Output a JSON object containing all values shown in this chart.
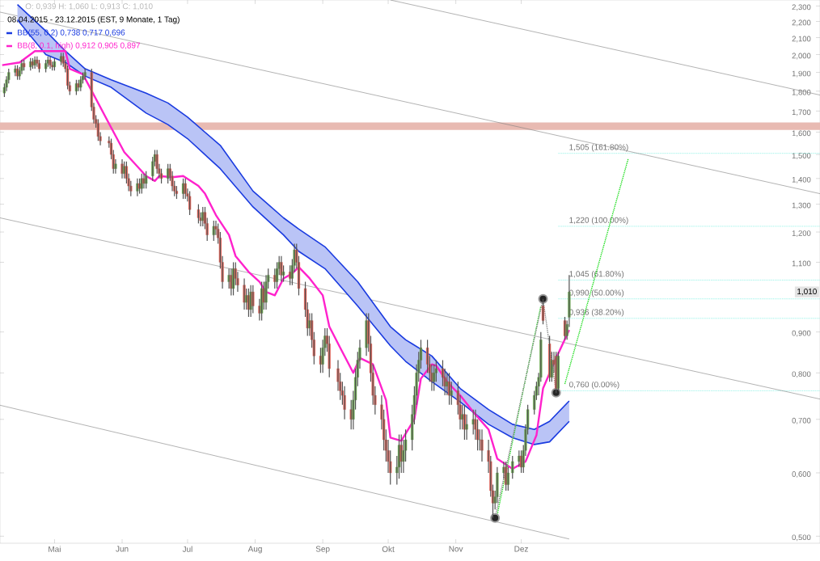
{
  "chart_data": {
    "type": "candlestick",
    "title": "O: 0,939  H: 1,060  L: 0,913  C: 1,010",
    "subtitle": "08.04.2015 - 23.12.2015 (EST, 9 Monate, 1 Tag)",
    "x": [
      "2015-04-08",
      "2015-04-09",
      "2015-04-10",
      "2015-04-13",
      "2015-04-14",
      "2015-04-15",
      "2015-04-16",
      "2015-04-17",
      "2015-04-20",
      "2015-04-21",
      "2015-04-22",
      "2015-04-23",
      "2015-04-24",
      "2015-04-27",
      "2015-04-28",
      "2015-04-29",
      "2015-04-30",
      "2015-05-01",
      "2015-05-04",
      "2015-05-05",
      "2015-05-06",
      "2015-05-07",
      "2015-05-08",
      "2015-05-11",
      "2015-05-12",
      "2015-05-13",
      "2015-05-14",
      "2015-05-15",
      "2015-05-18",
      "2015-05-19",
      "2015-05-20",
      "2015-05-21",
      "2015-05-22",
      "2015-05-26",
      "2015-05-27",
      "2015-05-28",
      "2015-05-29",
      "2015-06-01",
      "2015-06-02",
      "2015-06-03",
      "2015-06-04",
      "2015-06-05",
      "2015-06-08",
      "2015-06-09",
      "2015-06-10",
      "2015-06-11",
      "2015-06-12",
      "2015-06-15",
      "2015-06-16",
      "2015-06-17",
      "2015-06-18",
      "2015-06-19",
      "2015-06-22",
      "2015-06-23",
      "2015-06-24",
      "2015-06-25",
      "2015-06-26",
      "2015-06-29",
      "2015-06-30",
      "2015-07-01",
      "2015-07-02",
      "2015-07-06",
      "2015-07-07",
      "2015-07-08",
      "2015-07-09",
      "2015-07-10",
      "2015-07-13",
      "2015-07-14",
      "2015-07-15",
      "2015-07-16",
      "2015-07-17",
      "2015-07-20",
      "2015-07-21",
      "2015-07-22",
      "2015-07-23",
      "2015-07-24",
      "2015-07-27",
      "2015-07-28",
      "2015-07-29",
      "2015-07-30",
      "2015-07-31",
      "2015-08-03",
      "2015-08-04",
      "2015-08-05",
      "2015-08-06",
      "2015-08-07",
      "2015-08-10",
      "2015-08-11",
      "2015-08-12",
      "2015-08-13",
      "2015-08-14",
      "2015-08-17",
      "2015-08-18",
      "2015-08-19",
      "2015-08-20",
      "2015-08-21",
      "2015-08-24",
      "2015-08-25",
      "2015-08-26",
      "2015-08-27",
      "2015-08-28",
      "2015-08-31",
      "2015-09-01",
      "2015-09-02",
      "2015-09-03",
      "2015-09-04",
      "2015-09-08",
      "2015-09-09",
      "2015-09-10",
      "2015-09-11",
      "2015-09-14",
      "2015-09-15",
      "2015-09-16",
      "2015-09-17",
      "2015-09-18",
      "2015-09-21",
      "2015-09-22",
      "2015-09-23",
      "2015-09-24",
      "2015-09-25",
      "2015-09-28",
      "2015-09-29",
      "2015-09-30",
      "2015-10-01",
      "2015-10-02",
      "2015-10-05",
      "2015-10-06",
      "2015-10-07",
      "2015-10-08",
      "2015-10-09",
      "2015-10-12",
      "2015-10-13",
      "2015-10-14",
      "2015-10-15",
      "2015-10-16",
      "2015-10-19",
      "2015-10-20",
      "2015-10-21",
      "2015-10-22",
      "2015-10-23",
      "2015-10-26",
      "2015-10-27",
      "2015-10-28",
      "2015-10-29",
      "2015-10-30",
      "2015-11-02",
      "2015-11-03",
      "2015-11-04",
      "2015-11-05",
      "2015-11-06",
      "2015-11-09",
      "2015-11-10",
      "2015-11-11",
      "2015-11-12",
      "2015-11-13",
      "2015-11-16",
      "2015-11-17",
      "2015-11-18",
      "2015-11-19",
      "2015-11-20",
      "2015-11-23",
      "2015-11-24",
      "2015-11-25",
      "2015-11-27",
      "2015-11-30",
      "2015-12-01",
      "2015-12-02",
      "2015-12-03",
      "2015-12-04",
      "2015-12-07",
      "2015-12-08",
      "2015-12-09",
      "2015-12-10",
      "2015-12-11",
      "2015-12-14",
      "2015-12-15",
      "2015-12-16",
      "2015-12-17",
      "2015-12-18",
      "2015-12-21",
      "2015-12-22",
      "2015-12-23"
    ],
    "ohlc": [
      [
        1.79,
        1.84,
        1.77,
        1.82
      ],
      [
        1.82,
        1.88,
        1.8,
        1.86
      ],
      [
        1.86,
        1.92,
        1.84,
        1.9
      ],
      [
        1.9,
        1.94,
        1.88,
        1.92
      ],
      [
        1.92,
        1.94,
        1.86,
        1.88
      ],
      [
        1.88,
        1.93,
        1.86,
        1.91
      ],
      [
        1.91,
        1.97,
        1.89,
        1.95
      ],
      [
        1.95,
        1.97,
        1.91,
        1.93
      ],
      [
        1.93,
        1.98,
        1.91,
        1.96
      ],
      [
        1.96,
        1.98,
        1.92,
        1.94
      ],
      [
        1.94,
        1.99,
        1.92,
        1.97
      ],
      [
        1.97,
        1.99,
        1.93,
        1.95
      ],
      [
        1.95,
        1.97,
        1.9,
        1.92
      ],
      [
        1.92,
        1.97,
        1.9,
        1.95
      ],
      [
        1.95,
        1.99,
        1.93,
        1.97
      ],
      [
        1.97,
        1.99,
        1.92,
        1.94
      ],
      [
        1.94,
        1.96,
        1.91,
        1.93
      ],
      [
        1.93,
        1.98,
        1.91,
        1.96
      ],
      [
        1.96,
        2.01,
        1.94,
        1.99
      ],
      [
        1.99,
        2.01,
        1.93,
        1.95
      ],
      [
        1.95,
        1.97,
        1.9,
        1.92
      ],
      [
        1.92,
        1.94,
        1.81,
        1.83
      ],
      [
        1.83,
        1.85,
        1.78,
        1.8
      ],
      [
        1.8,
        1.86,
        1.78,
        1.84
      ],
      [
        1.84,
        1.86,
        1.8,
        1.82
      ],
      [
        1.82,
        1.88,
        1.8,
        1.86
      ],
      [
        1.86,
        1.9,
        1.84,
        1.88
      ],
      [
        1.88,
        1.92,
        1.86,
        1.9
      ],
      [
        1.9,
        1.92,
        1.7,
        1.72
      ],
      [
        1.72,
        1.74,
        1.64,
        1.66
      ],
      [
        1.66,
        1.68,
        1.62,
        1.64
      ],
      [
        1.64,
        1.66,
        1.56,
        1.58
      ],
      [
        1.58,
        1.6,
        1.54,
        1.56
      ],
      [
        1.56,
        1.58,
        1.53,
        1.55
      ],
      [
        1.55,
        1.57,
        1.48,
        1.5
      ],
      [
        1.5,
        1.52,
        1.42,
        1.44
      ],
      [
        1.44,
        1.48,
        1.42,
        1.46
      ],
      [
        1.46,
        1.48,
        1.4,
        1.42
      ],
      [
        1.42,
        1.47,
        1.4,
        1.45
      ],
      [
        1.45,
        1.47,
        1.38,
        1.4
      ],
      [
        1.4,
        1.42,
        1.35,
        1.37
      ],
      [
        1.37,
        1.39,
        1.33,
        1.35
      ],
      [
        1.35,
        1.4,
        1.33,
        1.38
      ],
      [
        1.38,
        1.4,
        1.34,
        1.36
      ],
      [
        1.36,
        1.42,
        1.34,
        1.4
      ],
      [
        1.4,
        1.42,
        1.36,
        1.38
      ],
      [
        1.38,
        1.43,
        1.36,
        1.41
      ],
      [
        1.41,
        1.49,
        1.39,
        1.47
      ],
      [
        1.47,
        1.52,
        1.45,
        1.5
      ],
      [
        1.5,
        1.52,
        1.42,
        1.44
      ],
      [
        1.44,
        1.46,
        1.4,
        1.42
      ],
      [
        1.42,
        1.44,
        1.38,
        1.4
      ],
      [
        1.4,
        1.46,
        1.38,
        1.44
      ],
      [
        1.44,
        1.46,
        1.39,
        1.41
      ],
      [
        1.41,
        1.43,
        1.35,
        1.37
      ],
      [
        1.37,
        1.39,
        1.33,
        1.35
      ],
      [
        1.35,
        1.37,
        1.32,
        1.34
      ],
      [
        1.34,
        1.4,
        1.32,
        1.38
      ],
      [
        1.38,
        1.4,
        1.32,
        1.34
      ],
      [
        1.34,
        1.36,
        1.31,
        1.33
      ],
      [
        1.33,
        1.35,
        1.26,
        1.28
      ],
      [
        1.28,
        1.3,
        1.23,
        1.25
      ],
      [
        1.25,
        1.27,
        1.22,
        1.24
      ],
      [
        1.24,
        1.29,
        1.22,
        1.27
      ],
      [
        1.27,
        1.29,
        1.21,
        1.23
      ],
      [
        1.23,
        1.25,
        1.17,
        1.19
      ],
      [
        1.19,
        1.24,
        1.17,
        1.22
      ],
      [
        1.22,
        1.24,
        1.19,
        1.21
      ],
      [
        1.21,
        1.23,
        1.16,
        1.18
      ],
      [
        1.18,
        1.2,
        1.08,
        1.1
      ],
      [
        1.1,
        1.12,
        1.02,
        1.04
      ],
      [
        1.04,
        1.08,
        1.02,
        1.06
      ],
      [
        1.06,
        1.08,
        1.0,
        1.02
      ],
      [
        1.02,
        1.1,
        1.0,
        1.08
      ],
      [
        1.08,
        1.1,
        1.03,
        1.05
      ],
      [
        1.05,
        1.07,
        1.01,
        1.03
      ],
      [
        1.03,
        1.05,
        0.96,
        0.98
      ],
      [
        0.98,
        1.02,
        0.96,
        1.0
      ],
      [
        1.0,
        1.02,
        0.94,
        0.96
      ],
      [
        0.96,
        1.03,
        0.94,
        1.01
      ],
      [
        1.01,
        1.03,
        0.95,
        0.97
      ],
      [
        0.97,
        0.99,
        0.93,
        0.95
      ],
      [
        0.95,
        1.04,
        0.93,
        1.02
      ],
      [
        1.02,
        1.04,
        0.96,
        0.98
      ],
      [
        0.98,
        1.06,
        0.96,
        1.04
      ],
      [
        1.04,
        1.08,
        1.02,
        1.06
      ],
      [
        1.06,
        1.08,
        1.02,
        1.04
      ],
      [
        1.04,
        1.1,
        1.02,
        1.08
      ],
      [
        1.08,
        1.12,
        1.06,
        1.1
      ],
      [
        1.1,
        1.12,
        1.04,
        1.06
      ],
      [
        1.06,
        1.09,
        1.04,
        1.07
      ],
      [
        1.07,
        1.09,
        1.03,
        1.05
      ],
      [
        1.05,
        1.11,
        1.03,
        1.09
      ],
      [
        1.09,
        1.16,
        1.07,
        1.14
      ],
      [
        1.14,
        1.16,
        1.08,
        1.1
      ],
      [
        1.1,
        1.12,
        1.0,
        1.02
      ],
      [
        1.02,
        1.04,
        0.94,
        0.96
      ],
      [
        0.96,
        0.98,
        0.89,
        0.91
      ],
      [
        0.91,
        0.95,
        0.89,
        0.93
      ],
      [
        0.93,
        0.95,
        0.86,
        0.88
      ],
      [
        0.88,
        0.9,
        0.82,
        0.84
      ],
      [
        0.84,
        0.86,
        0.8,
        0.82
      ],
      [
        0.82,
        0.88,
        0.8,
        0.86
      ],
      [
        0.86,
        0.91,
        0.84,
        0.89
      ],
      [
        0.89,
        0.91,
        0.85,
        0.87
      ],
      [
        0.87,
        0.89,
        0.79,
        0.81
      ],
      [
        0.81,
        0.83,
        0.76,
        0.78
      ],
      [
        0.78,
        0.8,
        0.74,
        0.76
      ],
      [
        0.76,
        0.78,
        0.73,
        0.75
      ],
      [
        0.75,
        0.77,
        0.7,
        0.72
      ],
      [
        0.72,
        0.74,
        0.68,
        0.7
      ],
      [
        0.7,
        0.76,
        0.68,
        0.74
      ],
      [
        0.74,
        0.81,
        0.72,
        0.79
      ],
      [
        0.79,
        0.85,
        0.77,
        0.83
      ],
      [
        0.83,
        0.88,
        0.81,
        0.86
      ],
      [
        0.86,
        0.95,
        0.84,
        0.93
      ],
      [
        0.93,
        0.95,
        0.85,
        0.87
      ],
      [
        0.87,
        0.89,
        0.78,
        0.8
      ],
      [
        0.8,
        0.82,
        0.73,
        0.75
      ],
      [
        0.75,
        0.77,
        0.71,
        0.73
      ],
      [
        0.73,
        0.75,
        0.68,
        0.7
      ],
      [
        0.7,
        0.72,
        0.64,
        0.66
      ],
      [
        0.66,
        0.68,
        0.62,
        0.64
      ],
      [
        0.64,
        0.66,
        0.6,
        0.62
      ],
      [
        0.62,
        0.64,
        0.58,
        0.6
      ],
      [
        0.6,
        0.63,
        0.58,
        0.61
      ],
      [
        0.61,
        0.67,
        0.59,
        0.65
      ],
      [
        0.65,
        0.67,
        0.6,
        0.62
      ],
      [
        0.62,
        0.66,
        0.6,
        0.64
      ],
      [
        0.64,
        0.68,
        0.62,
        0.66
      ],
      [
        0.66,
        0.73,
        0.64,
        0.71
      ],
      [
        0.71,
        0.77,
        0.69,
        0.75
      ],
      [
        0.75,
        0.82,
        0.73,
        0.8
      ],
      [
        0.8,
        0.85,
        0.78,
        0.83
      ],
      [
        0.83,
        0.88,
        0.81,
        0.86
      ],
      [
        0.86,
        0.88,
        0.8,
        0.82
      ],
      [
        0.82,
        0.84,
        0.78,
        0.8
      ],
      [
        0.8,
        0.82,
        0.76,
        0.78
      ],
      [
        0.78,
        0.82,
        0.76,
        0.8
      ],
      [
        0.8,
        0.83,
        0.78,
        0.81
      ],
      [
        0.81,
        0.83,
        0.77,
        0.79
      ],
      [
        0.79,
        0.81,
        0.75,
        0.77
      ],
      [
        0.77,
        0.8,
        0.75,
        0.78
      ],
      [
        0.78,
        0.8,
        0.73,
        0.75
      ],
      [
        0.75,
        0.78,
        0.73,
        0.76
      ],
      [
        0.76,
        0.78,
        0.71,
        0.73
      ],
      [
        0.73,
        0.75,
        0.68,
        0.7
      ],
      [
        0.7,
        0.73,
        0.68,
        0.71
      ],
      [
        0.71,
        0.73,
        0.66,
        0.68
      ],
      [
        0.68,
        0.71,
        0.66,
        0.69
      ],
      [
        0.69,
        0.72,
        0.67,
        0.7
      ],
      [
        0.7,
        0.72,
        0.66,
        0.68
      ],
      [
        0.68,
        0.7,
        0.64,
        0.66
      ],
      [
        0.66,
        0.68,
        0.64,
        0.66
      ],
      [
        0.66,
        0.68,
        0.62,
        0.64
      ],
      [
        0.64,
        0.66,
        0.6,
        0.62
      ],
      [
        0.62,
        0.63,
        0.56,
        0.57
      ],
      [
        0.57,
        0.58,
        0.527,
        0.55
      ],
      [
        0.55,
        0.57,
        0.54,
        0.56
      ],
      [
        0.56,
        0.61,
        0.55,
        0.6
      ],
      [
        0.6,
        0.62,
        0.59,
        0.61
      ],
      [
        0.61,
        0.62,
        0.57,
        0.58
      ],
      [
        0.58,
        0.61,
        0.57,
        0.6
      ],
      [
        0.6,
        0.63,
        0.59,
        0.62
      ],
      [
        0.62,
        0.64,
        0.61,
        0.63
      ],
      [
        0.63,
        0.64,
        0.6,
        0.61
      ],
      [
        0.61,
        0.65,
        0.6,
        0.64
      ],
      [
        0.64,
        0.69,
        0.63,
        0.68
      ],
      [
        0.68,
        0.73,
        0.67,
        0.72
      ],
      [
        0.72,
        0.76,
        0.71,
        0.75
      ],
      [
        0.75,
        0.78,
        0.74,
        0.77
      ],
      [
        0.77,
        0.8,
        0.75,
        0.79
      ],
      [
        0.79,
        0.9,
        0.78,
        0.88
      ],
      [
        0.97,
        0.99,
        0.92,
        0.93
      ],
      [
        0.87,
        0.89,
        0.78,
        0.79
      ],
      [
        0.79,
        0.85,
        0.78,
        0.83
      ],
      [
        0.83,
        0.85,
        0.8,
        0.82
      ],
      [
        0.84,
        0.85,
        0.755,
        0.765
      ],
      [
        0.765,
        0.85,
        0.76,
        0.84
      ],
      [
        0.93,
        0.94,
        0.88,
        0.89
      ],
      [
        0.89,
        0.93,
        0.88,
        0.92
      ],
      [
        0.939,
        1.06,
        0.913,
        1.01
      ]
    ],
    "series": [
      {
        "type": "line",
        "color": "#808080",
        "x": [
          "2015-10-02",
          "2016-04-16"
        ],
        "values": [
          2.34,
          1.78
        ]
      },
      {
        "type": "line",
        "color": "#808080",
        "x": [
          "2015-04-06",
          "2016-04-16"
        ],
        "values": [
          2.26,
          1.34
        ]
      },
      {
        "type": "line",
        "color": "#808080",
        "x": [
          "2015-04-06",
          "2016-04-16"
        ],
        "values": [
          1.25,
          0.742
        ]
      },
      {
        "type": "line",
        "color": "#808080",
        "x": [
          "2015-04-06",
          "2015-12-23"
        ],
        "values": [
          0.729,
          0.496
        ]
      },
      {
        "type": "line",
        "name": "BB(55, 0.2)  0,738  0,717  0,696",
        "color": "#1a3be0",
        "x": [
          "2015-04-14",
          "2015-04-27",
          "2015-05-06",
          "2015-05-15",
          "2015-05-27",
          "2015-06-12",
          "2015-06-22",
          "2015-07-01",
          "2015-07-16",
          "2015-07-31",
          "2015-08-14",
          "2015-08-21",
          "2015-09-02",
          "2015-09-17",
          "2015-10-02",
          "2015-10-09",
          "2015-10-21",
          "2015-11-03",
          "2015-11-16",
          "2015-11-27",
          "2015-12-07",
          "2015-12-14",
          "2015-12-23"
        ],
        "values": [
          2.31,
          2.14,
          2.02,
          1.92,
          1.86,
          1.79,
          1.74,
          1.67,
          1.54,
          1.35,
          1.25,
          1.21,
          1.15,
          1.04,
          0.914,
          0.88,
          0.84,
          0.765,
          0.72,
          0.69,
          0.68,
          0.696,
          0.738
        ],
        "upper": [
          2.31,
          2.14,
          2.02,
          1.92,
          1.86,
          1.79,
          1.74,
          1.67,
          1.54,
          1.35,
          1.25,
          1.21,
          1.15,
          1.04,
          0.914,
          0.88,
          0.84,
          0.765,
          0.72,
          0.69,
          0.68,
          0.696,
          0.738
        ],
        "lower": [
          2.21,
          2.0,
          1.955,
          1.88,
          1.82,
          1.69,
          1.635,
          1.57,
          1.44,
          1.29,
          1.19,
          1.135,
          1.08,
          0.97,
          0.865,
          0.827,
          0.78,
          0.736,
          0.69,
          0.664,
          0.651,
          0.656,
          0.696
        ]
      },
      {
        "type": "line",
        "color": "#1a3be0",
        "x": [
          "2015-04-14",
          "2015-04-27",
          "2015-05-06",
          "2015-05-15",
          "2015-05-27",
          "2015-06-12",
          "2015-06-22",
          "2015-07-01",
          "2015-07-16",
          "2015-07-31",
          "2015-08-14",
          "2015-08-21",
          "2015-09-02",
          "2015-09-17",
          "2015-10-02",
          "2015-10-09",
          "2015-10-21",
          "2015-11-03",
          "2015-11-16",
          "2015-11-27",
          "2015-12-07",
          "2015-12-14",
          "2015-12-23"
        ],
        "values": [
          2.21,
          2.0,
          1.955,
          1.88,
          1.82,
          1.69,
          1.635,
          1.57,
          1.44,
          1.29,
          1.19,
          1.135,
          1.08,
          0.97,
          0.865,
          0.827,
          0.78,
          0.736,
          0.69,
          0.664,
          0.651,
          0.656,
          0.696
        ]
      },
      {
        "type": "line",
        "name": "BB(8, 0.1, high)  0,912  0,905  0,897",
        "color": "#ff22cc",
        "x": [
          "2015-04-07",
          "2015-04-15",
          "2015-04-22",
          "2015-05-06",
          "2015-05-08",
          "2015-05-14",
          "2015-05-27",
          "2015-06-02",
          "2015-06-12",
          "2015-06-16",
          "2015-06-18",
          "2015-06-24",
          "2015-06-29",
          "2015-07-06",
          "2015-07-09",
          "2015-07-14",
          "2015-07-20",
          "2015-07-23",
          "2015-07-29",
          "2015-08-03",
          "2015-08-06",
          "2015-08-10",
          "2015-08-14",
          "2015-08-18",
          "2015-08-21",
          "2015-08-26",
          "2015-09-01",
          "2015-09-04",
          "2015-09-09",
          "2015-09-15",
          "2015-09-18",
          "2015-09-24",
          "2015-09-30",
          "2015-10-02",
          "2015-10-07",
          "2015-10-13",
          "2015-10-16",
          "2015-10-21",
          "2015-10-23",
          "2015-10-28",
          "2015-11-03",
          "2015-11-09",
          "2015-11-16",
          "2015-11-20",
          "2015-11-27",
          "2015-12-03",
          "2015-12-08",
          "2015-12-11",
          "2015-12-17",
          "2015-12-23"
        ],
        "values": [
          1.94,
          1.955,
          2.02,
          2.02,
          1.92,
          1.89,
          1.62,
          1.51,
          1.41,
          1.39,
          1.41,
          1.405,
          1.41,
          1.37,
          1.34,
          1.26,
          1.19,
          1.12,
          1.07,
          1.04,
          1.01,
          1.0,
          1.05,
          1.065,
          1.085,
          1.05,
          1.0,
          0.914,
          0.86,
          0.8,
          0.835,
          0.82,
          0.74,
          0.664,
          0.658,
          0.7,
          0.787,
          0.82,
          0.817,
          0.78,
          0.75,
          0.715,
          0.68,
          0.625,
          0.607,
          0.62,
          0.669,
          0.765,
          0.835,
          0.905
        ]
      },
      {
        "type": "line",
        "color": "#22dd22",
        "line_style": "dotted",
        "x": [
          "2015-11-20",
          "2015-12-10"
        ],
        "values": [
          0.532,
          0.97
        ]
      },
      {
        "type": "line",
        "color": "#22dd22",
        "line_style": "dotted",
        "x": [
          "2015-12-21",
          "2016-01-19"
        ],
        "values": [
          0.775,
          1.48
        ]
      },
      {
        "type": "line",
        "color": "#888888",
        "line_style": "dotted",
        "marker": "circle",
        "x": [
          "2015-11-19",
          "2015-12-11",
          "2015-12-17"
        ],
        "values": [
          0.527,
          0.99,
          0.756
        ]
      }
    ],
    "bands": [
      {
        "axis": "y",
        "from": 1.61,
        "to": 1.645,
        "color": "#e8bab2"
      }
    ],
    "ref_lines": [
      {
        "axis": "y",
        "value": 0.76,
        "label": "0,760 (0.00%)",
        "color": "#66eedd",
        "line_style": "dotted"
      },
      {
        "axis": "y",
        "value": 0.936,
        "label": "0,936 (38.20%)",
        "color": "#66eedd",
        "line_style": "dotted"
      },
      {
        "axis": "y",
        "value": 0.99,
        "label": "0,990 (50.00%)",
        "color": "#66eedd",
        "line_style": "dotted"
      },
      {
        "axis": "y",
        "value": 1.045,
        "label": "1,045 (61.80%)",
        "color": "#66eedd",
        "line_style": "dotted"
      },
      {
        "axis": "y",
        "value": 1.22,
        "label": "1,220 (100.00%)",
        "color": "#66eedd",
        "line_style": "dotted"
      },
      {
        "axis": "y",
        "value": 1.505,
        "label": "1,505 (161.80%)",
        "color": "#66eedd",
        "line_style": "dotted"
      }
    ],
    "annotations": [
      {
        "text": "1,010",
        "y": 1.01
      }
    ],
    "log": "y",
    "legend": "top left",
    "xlim": [
      "2015-04-06",
      "2016-04-16"
    ],
    "ylim": [
      0.49,
      2.34
    ],
    "xticks": [
      {
        "value": "2015-05-01",
        "label": "Mai"
      },
      {
        "value": "2015-06-01",
        "label": "Jun"
      },
      {
        "value": "2015-07-01",
        "label": "Jul"
      },
      {
        "value": "2015-08-01",
        "label": "Aug"
      },
      {
        "value": "2015-09-01",
        "label": "Sep"
      },
      {
        "value": "2015-10-01",
        "label": "Okt"
      },
      {
        "value": "2015-11-01",
        "label": "Nov"
      },
      {
        "value": "2015-12-01",
        "label": "Dez"
      }
    ],
    "yticks": [
      {
        "value": 0.5,
        "label": "0,500"
      },
      {
        "value": 0.6,
        "label": "0,600"
      },
      {
        "value": 0.7,
        "label": "0,700"
      },
      {
        "value": 0.8,
        "label": "0,800"
      },
      {
        "value": 0.9,
        "label": "0,900"
      },
      {
        "value": 1.1,
        "label": "1,100"
      },
      {
        "value": 1.2,
        "label": "1,200"
      },
      {
        "value": 1.3,
        "label": "1,300"
      },
      {
        "value": 1.4,
        "label": "1,400"
      },
      {
        "value": 1.5,
        "label": "1,500"
      },
      {
        "value": 1.6,
        "label": "1,600"
      },
      {
        "value": 1.7,
        "label": "1,700"
      },
      {
        "value": 1.8,
        "label": "1,800"
      },
      {
        "value": 1.9,
        "label": "1,900"
      },
      {
        "value": 2.0,
        "label": "2,000"
      },
      {
        "value": 2.1,
        "label": "2,100"
      },
      {
        "value": 2.2,
        "label": "2,200"
      },
      {
        "value": 2.3,
        "label": "2,300"
      }
    ]
  }
}
